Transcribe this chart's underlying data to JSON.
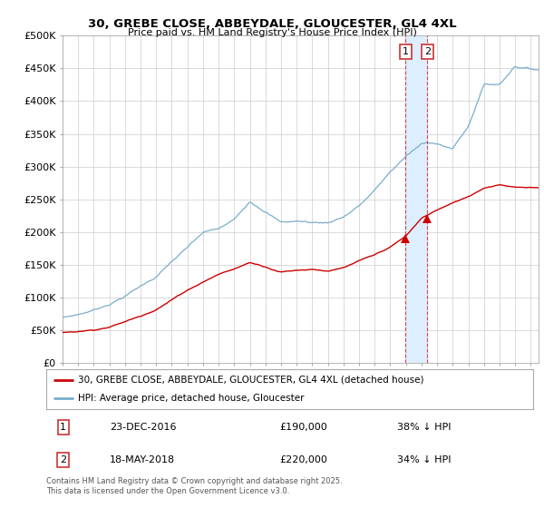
{
  "title": "30, GREBE CLOSE, ABBEYDALE, GLOUCESTER, GL4 4XL",
  "subtitle": "Price paid vs. HM Land Registry's House Price Index (HPI)",
  "ylabel_ticks": [
    "£0",
    "£50K",
    "£100K",
    "£150K",
    "£200K",
    "£250K",
    "£300K",
    "£350K",
    "£400K",
    "£450K",
    "£500K"
  ],
  "ytick_values": [
    0,
    50000,
    100000,
    150000,
    200000,
    250000,
    300000,
    350000,
    400000,
    450000,
    500000
  ],
  "xlim": [
    1995,
    2025.5
  ],
  "ylim": [
    0,
    500000
  ],
  "red_line_color": "#cc0000",
  "blue_line_color": "#7aadcc",
  "shaded_color": "#ddeeff",
  "legend1": "30, GREBE CLOSE, ABBEYDALE, GLOUCESTER, GL4 4XL (detached house)",
  "legend2": "HPI: Average price, detached house, Gloucester",
  "transaction1_label": "1",
  "transaction1_date": "23-DEC-2016",
  "transaction1_price": "£190,000",
  "transaction1_hpi": "38% ↓ HPI",
  "transaction1_x": 2016.98,
  "transaction1_y": 190000,
  "transaction2_label": "2",
  "transaction2_date": "18-MAY-2018",
  "transaction2_price": "£220,000",
  "transaction2_hpi": "34% ↓ HPI",
  "transaction2_x": 2018.38,
  "transaction2_y": 220000,
  "footer": "Contains HM Land Registry data © Crown copyright and database right 2025.\nThis data is licensed under the Open Government Licence v3.0.",
  "background_color": "#ffffff",
  "grid_color": "#cccccc",
  "hpi_key_years": [
    1995,
    1996,
    1997,
    1998,
    1999,
    2000,
    2001,
    2002,
    2003,
    2004,
    2005,
    2006,
    2007,
    2008,
    2009,
    2010,
    2011,
    2012,
    2013,
    2014,
    2015,
    2016,
    2017,
    2018,
    2019,
    2020,
    2021,
    2022,
    2023,
    2024,
    2025
  ],
  "hpi_key_values": [
    70000,
    75000,
    82000,
    92000,
    105000,
    120000,
    135000,
    158000,
    178000,
    200000,
    205000,
    218000,
    248000,
    235000,
    218000,
    220000,
    218000,
    218000,
    228000,
    245000,
    268000,
    296000,
    320000,
    338000,
    340000,
    332000,
    365000,
    430000,
    430000,
    460000,
    455000
  ],
  "red_key_years": [
    1995,
    1996,
    1997,
    1998,
    1999,
    2000,
    2001,
    2002,
    2003,
    2004,
    2005,
    2006,
    2007,
    2008,
    2009,
    2010,
    2011,
    2012,
    2013,
    2014,
    2015,
    2016,
    2017,
    2018,
    2019,
    2020,
    2021,
    2022,
    2023,
    2024,
    2025
  ],
  "red_key_values": [
    47000,
    49000,
    52000,
    57000,
    65000,
    74000,
    85000,
    100000,
    115000,
    128000,
    140000,
    148000,
    158000,
    152000,
    145000,
    148000,
    150000,
    148000,
    152000,
    162000,
    170000,
    182000,
    198000,
    225000,
    238000,
    248000,
    258000,
    272000,
    278000,
    275000,
    273000
  ]
}
